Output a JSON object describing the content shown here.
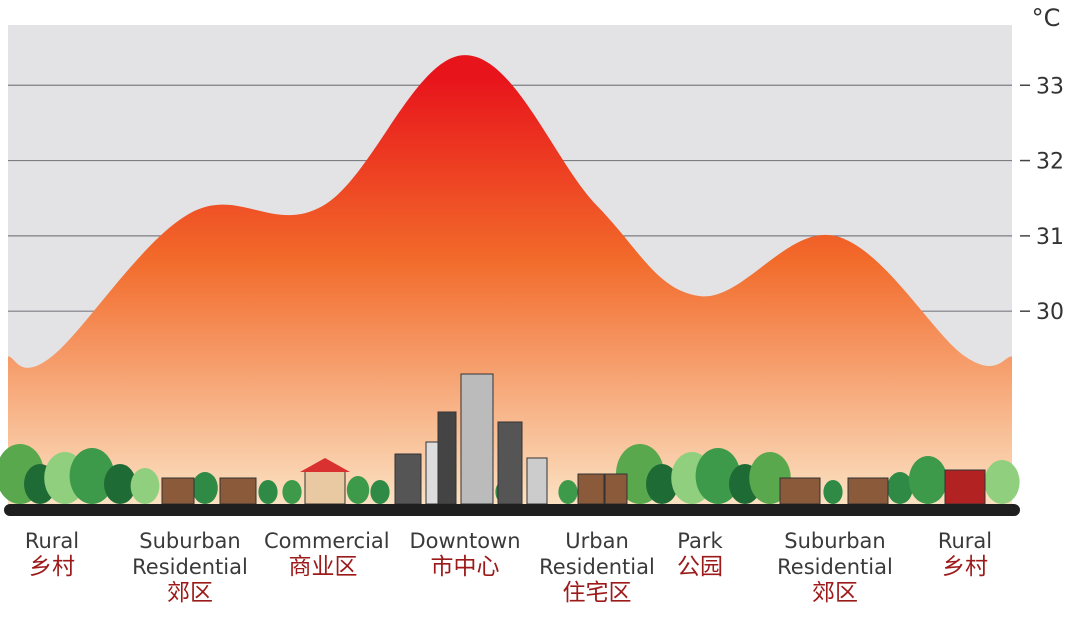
{
  "chart_data": {
    "type": "area",
    "y_label": "°C",
    "categories": [
      "Rural",
      "Suburban Residential",
      "Commercial",
      "Downtown",
      "Urban Residential",
      "Park",
      "Suburban Residential",
      "Rural"
    ],
    "categories_zh": [
      "乡村",
      "郊区",
      "商业区",
      "市中心",
      "住宅区",
      "公园",
      "郊区",
      "乡村"
    ],
    "values": [
      29.4,
      31.3,
      31.4,
      33.4,
      31.4,
      30.2,
      31.0,
      29.4
    ],
    "ylim": [
      27.4,
      33.8
    ],
    "yticks": [
      30,
      31,
      32,
      33
    ],
    "grid": true,
    "color_top": "#e8141b",
    "color_bottom": "#fbe3c4"
  }
}
